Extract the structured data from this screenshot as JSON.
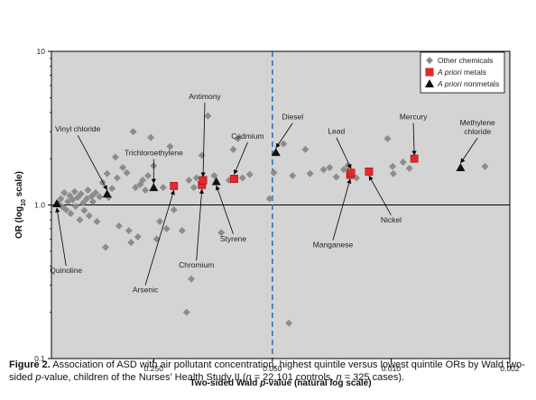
{
  "chart_data": {
    "type": "scatter",
    "x_axis": {
      "label_pre": "Two-sided Wald ",
      "label_italic": "p",
      "label_post": "-value (natural log scale)",
      "scale": "reversed-log",
      "range": [
        1.0,
        0.002
      ],
      "ticks": [
        {
          "value": 0.25,
          "label": "0.250"
        },
        {
          "value": 0.05,
          "label": "0.050"
        },
        {
          "value": 0.01,
          "label": "0.010"
        },
        {
          "value": 0.002,
          "label": "0.002"
        }
      ],
      "reference_line": {
        "value": 0.05,
        "style": "dashed",
        "color": "#2e75b6"
      }
    },
    "y_axis": {
      "label_pre": "OR (log",
      "label_sub": "10",
      "label_post": " scale)",
      "scale": "log",
      "range": [
        0.1,
        10
      ],
      "ticks": [
        {
          "value": 10,
          "label": "10"
        },
        {
          "value": 1.0,
          "label": "1.0"
        },
        {
          "value": 0.1,
          "label": "0.1"
        }
      ],
      "reference_line": {
        "value": 1.0,
        "style": "solid",
        "color": "#000000"
      }
    },
    "plot_background": "#d4d4d4",
    "legend": {
      "position": "top-right",
      "items": [
        {
          "key": "other",
          "text": "Other chemicals",
          "italic_prefix": "",
          "marker": "diamond",
          "color": "#8c8c8c"
        },
        {
          "key": "metals",
          "text": " metals",
          "italic_prefix": "A priori",
          "marker": "square",
          "color": "#e8262b"
        },
        {
          "key": "nonmetals",
          "text": " nonmetals",
          "italic_prefix": "A priori",
          "marker": "triangle",
          "color": "#111111"
        }
      ]
    },
    "series": [
      {
        "key": "other",
        "marker": "diamond",
        "color": "#8c8c8c",
        "points": [
          {
            "p": 0.91,
            "or": 1.02
          },
          {
            "p": 0.88,
            "or": 1.1
          },
          {
            "p": 0.86,
            "or": 0.97
          },
          {
            "p": 0.84,
            "or": 1.2
          },
          {
            "p": 0.82,
            "or": 0.93
          },
          {
            "p": 0.8,
            "or": 1.05
          },
          {
            "p": 0.78,
            "or": 1.15
          },
          {
            "p": 0.77,
            "or": 0.88
          },
          {
            "p": 0.75,
            "or": 1.08
          },
          {
            "p": 0.73,
            "or": 1.22
          },
          {
            "p": 0.72,
            "or": 0.98
          },
          {
            "p": 0.7,
            "or": 1.12
          },
          {
            "p": 0.68,
            "or": 0.8
          },
          {
            "p": 0.67,
            "or": 1.18
          },
          {
            "p": 0.65,
            "or": 1.03
          },
          {
            "p": 0.64,
            "or": 0.92
          },
          {
            "p": 0.62,
            "or": 1.1
          },
          {
            "p": 0.61,
            "or": 1.25
          },
          {
            "p": 0.6,
            "or": 0.85
          },
          {
            "p": 0.58,
            "or": 1.14
          },
          {
            "p": 0.57,
            "or": 1.05
          },
          {
            "p": 0.55,
            "or": 1.2
          },
          {
            "p": 0.54,
            "or": 0.78
          },
          {
            "p": 0.52,
            "or": 1.13
          },
          {
            "p": 0.5,
            "or": 1.4
          },
          {
            "p": 0.48,
            "or": 0.53
          },
          {
            "p": 0.47,
            "or": 1.6
          },
          {
            "p": 0.46,
            "or": 1.12
          },
          {
            "p": 0.44,
            "or": 1.28
          },
          {
            "p": 0.42,
            "or": 2.05
          },
          {
            "p": 0.41,
            "or": 1.5
          },
          {
            "p": 0.4,
            "or": 0.73
          },
          {
            "p": 0.38,
            "or": 1.75
          },
          {
            "p": 0.36,
            "or": 1.62
          },
          {
            "p": 0.35,
            "or": 0.68
          },
          {
            "p": 0.34,
            "or": 0.57
          },
          {
            "p": 0.33,
            "or": 3.0
          },
          {
            "p": 0.32,
            "or": 1.3
          },
          {
            "p": 0.31,
            "or": 0.62
          },
          {
            "p": 0.3,
            "or": 1.36
          },
          {
            "p": 0.29,
            "or": 1.45
          },
          {
            "p": 0.28,
            "or": 1.25
          },
          {
            "p": 0.27,
            "or": 1.55
          },
          {
            "p": 0.26,
            "or": 2.75
          },
          {
            "p": 0.25,
            "or": 1.8
          },
          {
            "p": 0.24,
            "or": 0.6
          },
          {
            "p": 0.23,
            "or": 0.78
          },
          {
            "p": 0.22,
            "or": 1.3
          },
          {
            "p": 0.21,
            "or": 0.7
          },
          {
            "p": 0.2,
            "or": 2.4
          },
          {
            "p": 0.19,
            "or": 0.93
          },
          {
            "p": 0.17,
            "or": 0.68
          },
          {
            "p": 0.16,
            "or": 0.2
          },
          {
            "p": 0.155,
            "or": 1.45
          },
          {
            "p": 0.15,
            "or": 0.33
          },
          {
            "p": 0.145,
            "or": 1.3
          },
          {
            "p": 0.14,
            "or": 1.5
          },
          {
            "p": 0.13,
            "or": 2.1
          },
          {
            "p": 0.12,
            "or": 3.8
          },
          {
            "p": 0.11,
            "or": 1.55
          },
          {
            "p": 0.1,
            "or": 0.66
          },
          {
            "p": 0.09,
            "or": 1.45
          },
          {
            "p": 0.085,
            "or": 2.3
          },
          {
            "p": 0.08,
            "or": 2.7
          },
          {
            "p": 0.075,
            "or": 1.5
          },
          {
            "p": 0.068,
            "or": 1.58
          },
          {
            "p": 0.052,
            "or": 1.1
          },
          {
            "p": 0.049,
            "or": 1.62
          },
          {
            "p": 0.043,
            "or": 2.5
          },
          {
            "p": 0.04,
            "or": 0.17
          },
          {
            "p": 0.038,
            "or": 1.55
          },
          {
            "p": 0.032,
            "or": 2.3
          },
          {
            "p": 0.03,
            "or": 1.6
          },
          {
            "p": 0.025,
            "or": 1.7
          },
          {
            "p": 0.023,
            "or": 1.75
          },
          {
            "p": 0.021,
            "or": 1.52
          },
          {
            "p": 0.019,
            "or": 1.7
          },
          {
            "p": 0.018,
            "or": 1.8
          },
          {
            "p": 0.016,
            "or": 1.5
          },
          {
            "p": 0.0105,
            "or": 2.7
          },
          {
            "p": 0.0098,
            "or": 1.78
          },
          {
            "p": 0.0097,
            "or": 1.6
          },
          {
            "p": 0.0085,
            "or": 1.9
          },
          {
            "p": 0.0078,
            "or": 1.73
          },
          {
            "p": 0.0028,
            "or": 1.78
          }
        ]
      },
      {
        "key": "metals",
        "marker": "square",
        "color": "#e8262b",
        "points": [
          {
            "p": 0.19,
            "or": 1.33,
            "name": "Arsenic"
          },
          {
            "p": 0.13,
            "or": 1.35,
            "name": "Chromium"
          },
          {
            "p": 0.128,
            "or": 1.45,
            "name": "Antimony"
          },
          {
            "p": 0.084,
            "or": 1.48,
            "name": "Cadmium"
          },
          {
            "p": 0.0174,
            "or": 1.57,
            "name": "Manganese"
          },
          {
            "p": 0.0172,
            "or": 1.62,
            "name": "Lead"
          },
          {
            "p": 0.0135,
            "or": 1.65,
            "name": "Nickel"
          },
          {
            "p": 0.0073,
            "or": 2.0,
            "name": "Mercury"
          }
        ]
      },
      {
        "key": "nonmetals",
        "marker": "triangle",
        "color": "#111111",
        "points": [
          {
            "p": 0.93,
            "or": 1.02,
            "name": "Quinoline"
          },
          {
            "p": 0.47,
            "or": 1.18,
            "name": "Vinyl chloride"
          },
          {
            "p": 0.25,
            "or": 1.3,
            "name": "Trichloroethylene"
          },
          {
            "p": 0.107,
            "or": 1.42,
            "name": "Styrene"
          },
          {
            "p": 0.0477,
            "or": 2.2,
            "name": "Diesel"
          },
          {
            "p": 0.0039,
            "or": 1.75,
            "name": "Methylene chloride"
          }
        ]
      }
    ],
    "annotations": [
      {
        "lines": [
          "Antimony"
        ],
        "tp": 0.125,
        "tor": 4.9,
        "ap": 0.128,
        "aor": 1.52
      },
      {
        "lines": [
          "Vinyl chloride"
        ],
        "tp": 0.7,
        "tor": 3.0,
        "ap": 0.47,
        "aor": 1.25
      },
      {
        "lines": [
          "Trichloroethylene"
        ],
        "tp": 0.25,
        "tor": 2.1,
        "ap": 0.25,
        "aor": 1.38
      },
      {
        "lines": [
          "Diesel"
        ],
        "tp": 0.038,
        "tor": 3.6,
        "ap": 0.0477,
        "aor": 2.35
      },
      {
        "lines": [
          "Cadmium"
        ],
        "tp": 0.07,
        "tor": 2.7,
        "ap": 0.084,
        "aor": 1.58
      },
      {
        "lines": [
          "Lead"
        ],
        "tp": 0.021,
        "tor": 2.9,
        "ap": 0.0172,
        "aor": 1.72
      },
      {
        "lines": [
          "Mercury"
        ],
        "tp": 0.0074,
        "tor": 3.6,
        "ap": 0.0073,
        "aor": 2.1
      },
      {
        "lines": [
          "Methylene",
          "chloride"
        ],
        "tp": 0.0031,
        "tor": 3.3,
        "ap": 0.0039,
        "aor": 1.87
      },
      {
        "lines": [
          "Quinoline"
        ],
        "tp": 0.82,
        "tor": 0.36,
        "ap": 0.93,
        "aor": 0.96
      },
      {
        "lines": [
          "Arsenic"
        ],
        "tp": 0.28,
        "tor": 0.27,
        "ap": 0.19,
        "aor": 1.25
      },
      {
        "lines": [
          "Chromium"
        ],
        "tp": 0.14,
        "tor": 0.39,
        "ap": 0.13,
        "aor": 1.27
      },
      {
        "lines": [
          "Styrene"
        ],
        "tp": 0.085,
        "tor": 0.58,
        "ap": 0.107,
        "aor": 1.34
      },
      {
        "lines": [
          "Manganese"
        ],
        "tp": 0.022,
        "tor": 0.53,
        "ap": 0.0174,
        "aor": 1.48
      },
      {
        "lines": [
          "Nickel"
        ],
        "tp": 0.01,
        "tor": 0.77,
        "ap": 0.0135,
        "aor": 1.55
      }
    ]
  },
  "caption": {
    "label": "Figure 2.",
    "text_1": " Association of ASD with air pollutant concentration, highest quintile versus lowest quintile ORs by Wald two-sided ",
    "italic_p": "p",
    "text_2": "-value, children of the Nurses’ Health Study II (",
    "italic_n1": "n",
    "text_3": " = 22,101 controls, ",
    "italic_n2": "n",
    "text_4": " = 325 cases)."
  }
}
